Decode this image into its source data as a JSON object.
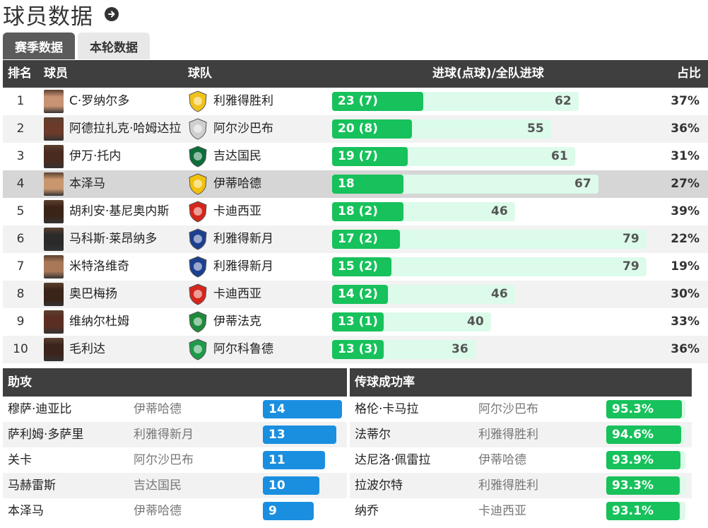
{
  "header": {
    "title": "球员数据",
    "arrow_icon": "arrow-circle-right-icon"
  },
  "tabs": [
    {
      "label": "赛季数据",
      "active": true
    },
    {
      "label": "本轮数据",
      "active": false
    }
  ],
  "main_table": {
    "columns": {
      "rank": "排名",
      "player": "球员",
      "team": "球队",
      "goals": "进球(点球)/全队进球",
      "ratio": "占比"
    },
    "rows": [
      {
        "rank": "1",
        "player": "C·罗纳尔多",
        "team": "利雅得胜利",
        "goals": 23,
        "goals_label": "23 (7)",
        "team_goals": 62,
        "ratio": "37%"
      },
      {
        "rank": "2",
        "player": "阿德拉扎克·哈姆达拉",
        "team": "阿尔沙巴布",
        "goals": 20,
        "goals_label": "20 (8)",
        "team_goals": 55,
        "ratio": "36%"
      },
      {
        "rank": "3",
        "player": "伊万·托内",
        "team": "吉达国民",
        "goals": 19,
        "goals_label": "19 (7)",
        "team_goals": 61,
        "ratio": "31%"
      },
      {
        "rank": "4",
        "player": "本泽马",
        "team": "伊蒂哈德",
        "goals": 18,
        "goals_label": "18",
        "team_goals": 67,
        "ratio": "27%",
        "highlight": true
      },
      {
        "rank": "5",
        "player": "胡利安·基尼奥内斯",
        "team": "卡迪西亚",
        "goals": 18,
        "goals_label": "18 (2)",
        "team_goals": 46,
        "ratio": "39%"
      },
      {
        "rank": "6",
        "player": "马科斯·莱昂纳多",
        "team": "利雅得新月",
        "goals": 17,
        "goals_label": "17 (2)",
        "team_goals": 79,
        "ratio": "22%"
      },
      {
        "rank": "7",
        "player": "米特洛维奇",
        "team": "利雅得新月",
        "goals": 15,
        "goals_label": "15 (2)",
        "team_goals": 79,
        "ratio": "19%"
      },
      {
        "rank": "8",
        "player": "奥巴梅扬",
        "team": "卡迪西亚",
        "goals": 14,
        "goals_label": "14 (2)",
        "team_goals": 46,
        "ratio": "30%"
      },
      {
        "rank": "9",
        "player": "维纳尔杜姆",
        "team": "伊蒂法克",
        "goals": 13,
        "goals_label": "13 (1)",
        "team_goals": 40,
        "ratio": "33%"
      },
      {
        "rank": "10",
        "player": "毛利达",
        "team": "阿尔科鲁德",
        "goals": 13,
        "goals_label": "13 (3)",
        "team_goals": 36,
        "ratio": "36%"
      }
    ]
  },
  "assists": {
    "title": "助攻",
    "rows": [
      {
        "player": "穆萨·迪亚比",
        "team": "伊蒂哈德",
        "value": 14,
        "label": "14"
      },
      {
        "player": "萨利姆·多萨里",
        "team": "利雅得新月",
        "value": 13,
        "label": "13"
      },
      {
        "player": "关卡",
        "team": "阿尔沙巴布",
        "value": 11,
        "label": "11"
      },
      {
        "player": "马赫雷斯",
        "team": "吉达国民",
        "value": 10,
        "label": "10"
      },
      {
        "player": "本泽马",
        "team": "伊蒂哈德",
        "value": 9,
        "label": "9"
      }
    ]
  },
  "passing": {
    "title": "传球成功率",
    "rows": [
      {
        "player": "格伦·卡马拉",
        "team": "阿尔沙巴布",
        "value": 95.3,
        "label": "95.3%"
      },
      {
        "player": "法蒂尔",
        "team": "利雅得胜利",
        "value": 94.6,
        "label": "94.6%"
      },
      {
        "player": "达尼洛·佩雷拉",
        "team": "伊蒂哈德",
        "value": 93.9,
        "label": "93.9%"
      },
      {
        "player": "拉波尔特",
        "team": "利雅得胜利",
        "value": 93.3,
        "label": "93.3%"
      },
      {
        "player": "纳乔",
        "team": "卡迪西亚",
        "value": 93.1,
        "label": "93.1%"
      }
    ]
  },
  "colors": {
    "goal_bar": "#17c15b",
    "goal_bar_bg": "#dcfbea",
    "assist_bar": "#1a8fe0",
    "pass_bar": "#17c15b",
    "header_bg": "#3f3f3f"
  }
}
